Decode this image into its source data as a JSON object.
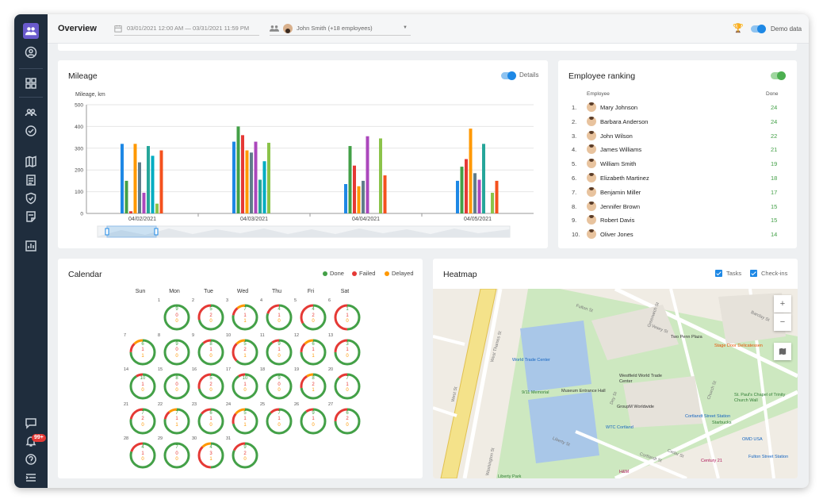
{
  "topbar": {
    "title": "Overview",
    "date_range": "03/01/2021 12:00 AM — 03/31/2021 11:59 PM",
    "employee_select": "John Smith (+18 employees)",
    "demo_label": "Demo data"
  },
  "sidebar": {
    "badge": "99+"
  },
  "mileage": {
    "title": "Mileage",
    "details_label": "Details",
    "chart_data": {
      "type": "bar",
      "ylabel": "Mileage, km",
      "ylim": [
        0,
        500
      ],
      "yticks": [
        "500",
        "400",
        "300",
        "200",
        "100",
        "0"
      ],
      "categories": [
        "04/02/2021",
        "04/03/2021",
        "04/04/2021",
        "04/05/2021"
      ],
      "colors": [
        "#1e88e5",
        "#43a047",
        "#e53935",
        "#ff9800",
        "#607d8b",
        "#ab47bc",
        "#26a69a",
        "#00acc1",
        "#8bc34a",
        "#f4511e"
      ],
      "series_values": [
        [
          320,
          150,
          10,
          320,
          235,
          95,
          310,
          265,
          45,
          290
        ],
        [
          330,
          400,
          360,
          290,
          280,
          330,
          155,
          240,
          325,
          0
        ],
        [
          135,
          310,
          220,
          125,
          150,
          355,
          0,
          0,
          345,
          175
        ],
        [
          150,
          215,
          250,
          390,
          185,
          155,
          320,
          0,
          95,
          150
        ]
      ]
    }
  },
  "ranking": {
    "title": "Employee ranking",
    "col_employee": "Employee",
    "col_done": "Done",
    "rows": [
      {
        "num": "1.",
        "name": "Mary Johnson",
        "done": "24"
      },
      {
        "num": "2.",
        "name": "Barbara Anderson",
        "done": "24"
      },
      {
        "num": "3.",
        "name": "John Wilson",
        "done": "22"
      },
      {
        "num": "4.",
        "name": "James Williams",
        "done": "21"
      },
      {
        "num": "5.",
        "name": "William Smith",
        "done": "19"
      },
      {
        "num": "6.",
        "name": "Elizabeth Martinez",
        "done": "18"
      },
      {
        "num": "7.",
        "name": "Benjamin Miller",
        "done": "17"
      },
      {
        "num": "8.",
        "name": "Jennifer Brown",
        "done": "15"
      },
      {
        "num": "9.",
        "name": "Robert Davis",
        "done": "15"
      },
      {
        "num": "10.",
        "name": "Oliver Jones",
        "done": "14"
      }
    ]
  },
  "calendar": {
    "title": "Calendar",
    "legend": {
      "done": "Done",
      "failed": "Failed",
      "delayed": "Delayed"
    },
    "colors": {
      "done": "#43a047",
      "failed": "#e53935",
      "delayed": "#ff9800"
    },
    "weekdays": [
      "Sun",
      "Mon",
      "Tue",
      "Wed",
      "Thu",
      "Fri",
      "Sat"
    ],
    "weeks": [
      [
        null,
        {
          "d": "1",
          "v": [
            "9",
            "0",
            "0"
          ]
        },
        {
          "d": "2",
          "v": [
            "5",
            "2",
            "0"
          ]
        },
        {
          "d": "3",
          "v": [
            "7",
            "1",
            "1"
          ]
        },
        {
          "d": "4",
          "v": [
            "4",
            "1",
            "0"
          ]
        },
        {
          "d": "5",
          "v": [
            "4",
            "2",
            "0"
          ]
        },
        {
          "d": "6",
          "v": [
            "1",
            "1",
            "0"
          ]
        }
      ],
      [
        {
          "d": "7",
          "v": [
            "6",
            "1",
            "1"
          ]
        },
        {
          "d": "8",
          "v": [
            "9",
            "0",
            "0"
          ]
        },
        {
          "d": "9",
          "v": [
            "8",
            "1",
            "0"
          ]
        },
        {
          "d": "10",
          "v": [
            "5",
            "2",
            "1"
          ]
        },
        {
          "d": "11",
          "v": [
            "9",
            "1",
            "0"
          ]
        },
        {
          "d": "12",
          "v": [
            "6",
            "1",
            "1"
          ]
        },
        {
          "d": "13",
          "v": [
            "3",
            "1",
            "0"
          ]
        }
      ],
      [
        {
          "d": "14",
          "v": [
            "10",
            "1",
            "0"
          ]
        },
        {
          "d": "15",
          "v": [
            "8",
            "0",
            "0"
          ]
        },
        {
          "d": "16",
          "v": [
            "5",
            "2",
            "0"
          ]
        },
        {
          "d": "17",
          "v": [
            "10",
            "1",
            "0"
          ]
        },
        {
          "d": "18",
          "v": [
            "9",
            "0",
            "0"
          ]
        },
        {
          "d": "19",
          "v": [
            "8",
            "2",
            "1"
          ]
        },
        {
          "d": "20",
          "v": [
            "7",
            "1",
            "0"
          ]
        }
      ],
      [
        {
          "d": "21",
          "v": [
            "7",
            "2",
            "0"
          ]
        },
        {
          "d": "22",
          "v": [
            "7",
            "1",
            "1"
          ]
        },
        {
          "d": "23",
          "v": [
            "6",
            "1",
            "0"
          ]
        },
        {
          "d": "24",
          "v": [
            "5",
            "1",
            "1"
          ]
        },
        {
          "d": "25",
          "v": [
            "7",
            "1",
            "0"
          ]
        },
        {
          "d": "26",
          "v": [
            "9",
            "1",
            "0"
          ]
        },
        {
          "d": "27",
          "v": [
            "6",
            "2",
            "0"
          ]
        }
      ],
      [
        {
          "d": "28",
          "v": [
            "4",
            "1",
            "0"
          ]
        },
        {
          "d": "29",
          "v": [
            "7",
            "0",
            "0"
          ]
        },
        {
          "d": "30",
          "v": [
            "4",
            "3",
            "1"
          ]
        },
        {
          "d": "31",
          "v": [
            "9",
            "2",
            "0"
          ]
        },
        null,
        null,
        null
      ]
    ]
  },
  "heatmap": {
    "title": "Heatmap",
    "tasks_label": "Tasks",
    "checkins_label": "Check-ins",
    "map_labels": [
      {
        "text": "World Trade Center",
        "c": "#1565c0"
      },
      {
        "text": "9/11 Memorial",
        "c": "#2e7d32"
      },
      {
        "text": "Museum Entrance Hall",
        "c": "#333"
      },
      {
        "text": "Two Penn Plaza",
        "c": "#333"
      },
      {
        "text": "Stage Door Delicatessen",
        "c": "#e65100"
      },
      {
        "text": "St. Paul's Chapel of Trinity Church Wall",
        "c": "#2e7d32"
      },
      {
        "text": "Cortlandt Street Station",
        "c": "#1565c0"
      },
      {
        "text": "Fulton Street Station",
        "c": "#1565c0"
      },
      {
        "text": "WTC Cortland",
        "c": "#1565c0"
      },
      {
        "text": "Century 21",
        "c": "#ad1457"
      },
      {
        "text": "Liberty Park",
        "c": "#2e7d32"
      },
      {
        "text": "H&M",
        "c": "#ad1457"
      },
      {
        "text": "OMD USA",
        "c": "#1565c0"
      },
      {
        "text": "Starbucks",
        "c": "#2e7d32"
      },
      {
        "text": "GroupM Worldwide",
        "c": "#333"
      },
      {
        "text": "Westfield World Trade Center",
        "c": "#333"
      }
    ],
    "streets": [
      "West St",
      "Fulton St",
      "Vesey St",
      "Church St",
      "Greenwich St",
      "Liberty St",
      "Cedar St",
      "Dey St",
      "Cortlandt St",
      "Washington St",
      "Barclay St",
      "West Thames St"
    ],
    "zoom_in": "+",
    "zoom_out": "−"
  }
}
